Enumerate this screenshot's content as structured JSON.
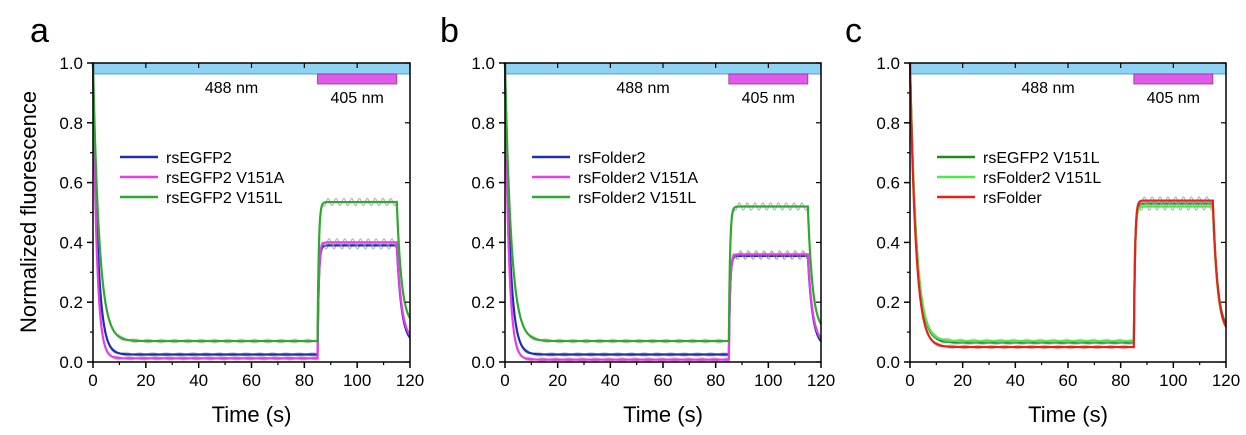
{
  "figure": {
    "ylabel": "Normalized fluorescence"
  },
  "chart_data": [
    {
      "type": "line",
      "panel": "a",
      "xlabel": "Time (s)",
      "ylabel": "Normalized fluorescence",
      "xlim": [
        0,
        120
      ],
      "ylim": [
        0,
        1.0
      ],
      "xticks": [
        "0",
        "20",
        "40",
        "60",
        "80",
        "100",
        "120"
      ],
      "yticks": [
        "0.0",
        "0.2",
        "0.4",
        "0.6",
        "0.8",
        "1.0"
      ],
      "illumination": [
        {
          "label": "488 nm",
          "start": 0,
          "end": 120,
          "color": "#8fd3f4"
        },
        {
          "label": "405 nm",
          "start": 85,
          "end": 115,
          "color": "#e05ce8"
        }
      ],
      "legend_position": "center-left",
      "series": [
        {
          "name": "rsEGFP2",
          "color": "#1a2fb5",
          "plateau_off": 0.025,
          "k_off": 0.55,
          "plateau_on": 0.39,
          "x_on": 85,
          "x_end": 115,
          "decay_end": 0.06
        },
        {
          "name": "rsEGFP2 V151A",
          "color": "#e43ee8",
          "plateau_off": 0.012,
          "k_off": 0.7,
          "plateau_on": 0.4,
          "x_on": 85,
          "x_end": 115,
          "decay_end": 0.07
        },
        {
          "name": "rsEGFP2 V151L",
          "color": "#2ea82e",
          "plateau_off": 0.07,
          "k_off": 0.42,
          "plateau_on": 0.535,
          "x_on": 85,
          "x_end": 115,
          "decay_end": 0.12
        }
      ]
    },
    {
      "type": "line",
      "panel": "b",
      "xlabel": "Time (s)",
      "ylabel": "",
      "xlim": [
        0,
        120
      ],
      "ylim": [
        0,
        1.0
      ],
      "xticks": [
        "0",
        "20",
        "40",
        "60",
        "80",
        "100",
        "120"
      ],
      "yticks": [
        "0.0",
        "0.2",
        "0.4",
        "0.6",
        "0.8",
        "1.0"
      ],
      "illumination": [
        {
          "label": "488 nm",
          "start": 0,
          "end": 120,
          "color": "#8fd3f4"
        },
        {
          "label": "405 nm",
          "start": 85,
          "end": 115,
          "color": "#e05ce8"
        }
      ],
      "legend_position": "center-left",
      "series": [
        {
          "name": "rsFolder2",
          "color": "#1a2fb5",
          "plateau_off": 0.025,
          "k_off": 0.55,
          "plateau_on": 0.355,
          "x_on": 85,
          "x_end": 115,
          "decay_end": 0.05
        },
        {
          "name": "rsFolder2 V151A",
          "color": "#e43ee8",
          "plateau_off": 0.008,
          "k_off": 0.7,
          "plateau_on": 0.36,
          "x_on": 85,
          "x_end": 115,
          "decay_end": 0.06
        },
        {
          "name": "rsFolder2 V151L",
          "color": "#2ea82e",
          "plateau_off": 0.07,
          "k_off": 0.42,
          "plateau_on": 0.52,
          "x_on": 85,
          "x_end": 115,
          "decay_end": 0.1
        }
      ]
    },
    {
      "type": "line",
      "panel": "c",
      "xlabel": "Time (s)",
      "ylabel": "",
      "xlim": [
        0,
        120
      ],
      "ylim": [
        0,
        1.0
      ],
      "xticks": [
        "0",
        "20",
        "40",
        "60",
        "80",
        "100",
        "120"
      ],
      "yticks": [
        "0.0",
        "0.2",
        "0.4",
        "0.6",
        "0.8",
        "1.0"
      ],
      "illumination": [
        {
          "label": "488 nm",
          "start": 0,
          "end": 120,
          "color": "#8fd3f4"
        },
        {
          "label": "405 nm",
          "start": 85,
          "end": 115,
          "color": "#e05ce8"
        }
      ],
      "legend_position": "center-left",
      "series": [
        {
          "name": "rsEGFP2 V151L",
          "color": "#1f8a1f",
          "plateau_off": 0.065,
          "k_off": 0.42,
          "plateau_on": 0.53,
          "x_on": 85,
          "x_end": 115,
          "decay_end": 0.1
        },
        {
          "name": "rsFolder2 V151L",
          "color": "#4be84b",
          "plateau_off": 0.07,
          "k_off": 0.42,
          "plateau_on": 0.52,
          "x_on": 85,
          "x_end": 115,
          "decay_end": 0.09
        },
        {
          "name": "rsFolder",
          "color": "#e8201a",
          "plateau_off": 0.05,
          "k_off": 0.45,
          "plateau_on": 0.54,
          "x_on": 85,
          "x_end": 115,
          "decay_end": 0.09
        }
      ]
    }
  ]
}
